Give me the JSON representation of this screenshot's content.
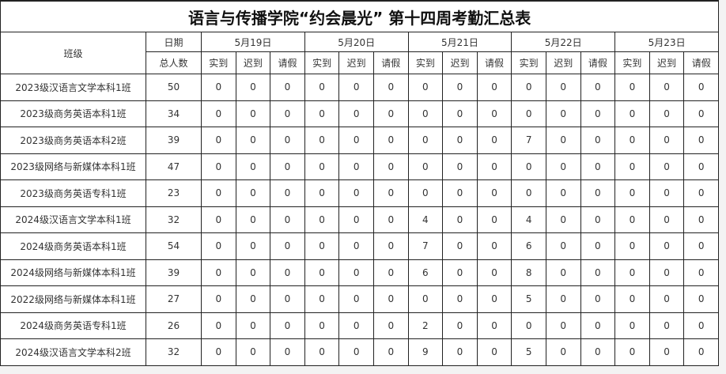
{
  "title": "语言与传播学院“约会晨光” 第十四周考勤汇总表",
  "header": {
    "class_label": "班级",
    "date_label": "日期",
    "total_label": "总人数",
    "dates": [
      "5月19日",
      "5月20日",
      "5月21日",
      "5月22日",
      "5月23日"
    ],
    "sub_labels": [
      "实到",
      "迟到",
      "请假"
    ]
  },
  "rows": [
    {
      "class": "2023级汉语言文学本科1班",
      "total": "50",
      "values": [
        "0",
        "0",
        "0",
        "0",
        "0",
        "0",
        "0",
        "0",
        "0",
        "0",
        "0",
        "0",
        "0",
        "0",
        "0"
      ]
    },
    {
      "class": "2023级商务英语本科1班",
      "total": "34",
      "values": [
        "0",
        "0",
        "0",
        "0",
        "0",
        "0",
        "0",
        "0",
        "0",
        "0",
        "0",
        "0",
        "0",
        "0",
        "0"
      ]
    },
    {
      "class": "2023级商务英语本科2班",
      "total": "39",
      "values": [
        "0",
        "0",
        "0",
        "0",
        "0",
        "0",
        "0",
        "0",
        "0",
        "7",
        "0",
        "0",
        "0",
        "0",
        "0"
      ]
    },
    {
      "class": "2023级网络与新媒体本科1班",
      "total": "47",
      "values": [
        "0",
        "0",
        "0",
        "0",
        "0",
        "0",
        "0",
        "0",
        "0",
        "0",
        "0",
        "0",
        "0",
        "0",
        "0"
      ]
    },
    {
      "class": "2023级商务英语专科1班",
      "total": "23",
      "values": [
        "0",
        "0",
        "0",
        "0",
        "0",
        "0",
        "0",
        "0",
        "0",
        "0",
        "0",
        "0",
        "0",
        "0",
        "0"
      ]
    },
    {
      "class": "2024级汉语言文学本科1班",
      "total": "32",
      "values": [
        "0",
        "0",
        "0",
        "0",
        "0",
        "0",
        "4",
        "0",
        "0",
        "4",
        "0",
        "0",
        "0",
        "0",
        "0"
      ]
    },
    {
      "class": "2024级商务英语本科1班",
      "total": "54",
      "values": [
        "0",
        "0",
        "0",
        "0",
        "0",
        "0",
        "7",
        "0",
        "0",
        "6",
        "0",
        "0",
        "0",
        "0",
        "0"
      ]
    },
    {
      "class": "2024级网络与新媒体本科1班",
      "total": "39",
      "values": [
        "0",
        "0",
        "0",
        "0",
        "0",
        "0",
        "6",
        "0",
        "0",
        "8",
        "0",
        "0",
        "0",
        "0",
        "0"
      ]
    },
    {
      "class": "2022级网络与新媒体本科1班",
      "total": "27",
      "values": [
        "0",
        "0",
        "0",
        "0",
        "0",
        "0",
        "0",
        "0",
        "0",
        "5",
        "0",
        "0",
        "0",
        "0",
        "0"
      ]
    },
    {
      "class": "2024级商务英语专科1班",
      "total": "26",
      "values": [
        "0",
        "0",
        "0",
        "0",
        "0",
        "0",
        "2",
        "0",
        "0",
        "0",
        "0",
        "0",
        "0",
        "0",
        "0"
      ]
    },
    {
      "class": "2024级汉语言文学本科2班",
      "total": "32",
      "values": [
        "0",
        "0",
        "0",
        "0",
        "0",
        "0",
        "9",
        "0",
        "0",
        "5",
        "0",
        "0",
        "0",
        "0",
        "0"
      ]
    }
  ]
}
